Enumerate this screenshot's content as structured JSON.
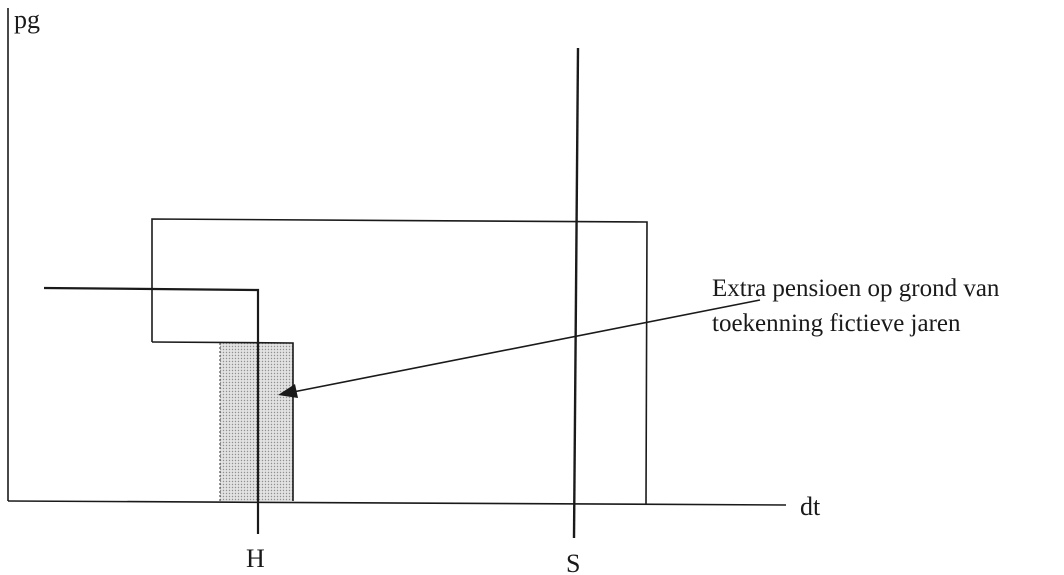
{
  "axes": {
    "y_label": "pg",
    "x_label": "dt"
  },
  "markers": {
    "h_label": "H",
    "s_label": "S"
  },
  "annotation": {
    "line1": "Extra pensioen op grond van",
    "line2": "toekenning fictieve jaren"
  },
  "colors": {
    "ink": "#1a1a1a",
    "shaded_area": "#d4d4d4"
  }
}
